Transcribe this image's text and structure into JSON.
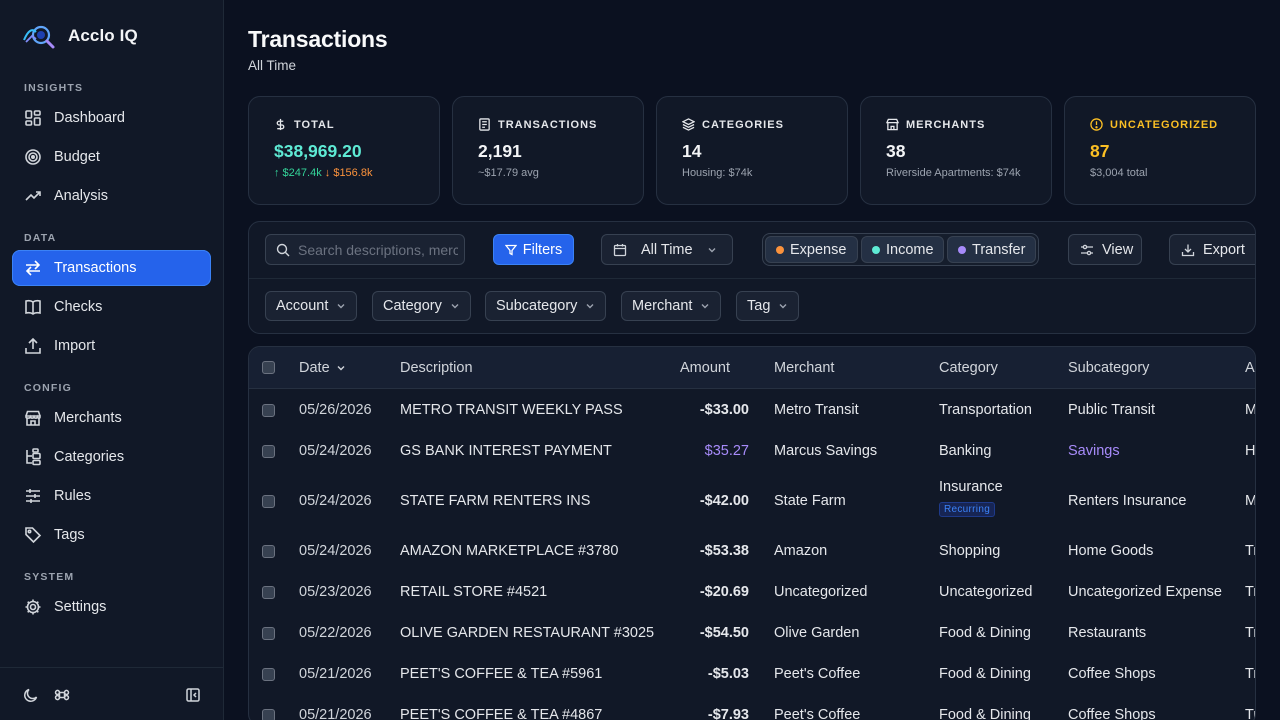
{
  "app": {
    "name": "Acclo IQ"
  },
  "sidebar": {
    "sections": {
      "insights": "INSIGHTS",
      "data": "DATA",
      "config": "CONFIG",
      "system": "SYSTEM"
    },
    "items": [
      {
        "label": "Dashboard",
        "icon": "dashboard-icon"
      },
      {
        "label": "Budget",
        "icon": "target-icon"
      },
      {
        "label": "Analysis",
        "icon": "trending-icon"
      },
      {
        "label": "Transactions",
        "icon": "transfer-arrows-icon",
        "active": true
      },
      {
        "label": "Checks",
        "icon": "book-icon"
      },
      {
        "label": "Import",
        "icon": "upload-icon"
      },
      {
        "label": "Merchants",
        "icon": "store-icon"
      },
      {
        "label": "Categories",
        "icon": "tree-icon"
      },
      {
        "label": "Rules",
        "icon": "sliders-icon"
      },
      {
        "label": "Tags",
        "icon": "tag-icon"
      },
      {
        "label": "Settings",
        "icon": "gear-icon"
      }
    ]
  },
  "header": {
    "title": "Transactions",
    "subtitle": "All Time"
  },
  "stats": [
    {
      "label": "TOTAL",
      "icon": "dollar-icon",
      "value": "$38,969.20",
      "sub_up": "↑ $247.4k",
      "sub_down": "↓ $156.8k"
    },
    {
      "label": "TRANSACTIONS",
      "icon": "receipt-icon",
      "value": "2,191",
      "sub": "~$17.79 avg"
    },
    {
      "label": "CATEGORIES",
      "icon": "layers-icon",
      "value": "14",
      "sub": "Housing: $74k"
    },
    {
      "label": "MERCHANTS",
      "icon": "store-icon",
      "value": "38",
      "sub": "Riverside Apartments: $74k"
    },
    {
      "label": "UNCATEGORIZED",
      "icon": "alert-circle-icon",
      "value": "87",
      "sub": "$3,004 total"
    }
  ],
  "toolbar": {
    "search_placeholder": "Search descriptions, merchants...",
    "filters_label": "Filters",
    "date_range": "All Time",
    "types": [
      "Expense",
      "Income",
      "Transfer"
    ],
    "type_colors": [
      "#fb923c",
      "#5eead4",
      "#a78bfa"
    ],
    "view_label": "View",
    "export_label": "Export",
    "dropdowns": [
      "Account",
      "Category",
      "Subcategory",
      "Merchant",
      "Tag"
    ]
  },
  "table": {
    "columns": [
      "Date",
      "Description",
      "Amount",
      "Merchant",
      "Category",
      "Subcategory",
      "Ac"
    ],
    "rows": [
      {
        "date": "05/26/2026",
        "description": "METRO TRANSIT WEEKLY PASS",
        "amount": "-$33.00",
        "merchant": "Metro Transit",
        "category": "Transportation",
        "subcategory": "Public Transit",
        "account": "M"
      },
      {
        "date": "05/24/2026",
        "description": "GS BANK INTEREST PAYMENT",
        "amount": "$35.27",
        "merchant": "Marcus Savings",
        "category": "Banking",
        "subcategory": "Savings",
        "account": "H"
      },
      {
        "date": "05/24/2026",
        "description": "STATE FARM RENTERS INS",
        "amount": "-$42.00",
        "merchant": "State Farm",
        "category": "Insurance",
        "badge": "Recurring",
        "subcategory": "Renters Insurance",
        "account": "M"
      },
      {
        "date": "05/24/2026",
        "description": "AMAZON MARKETPLACE #3780",
        "amount": "-$53.38",
        "merchant": "Amazon",
        "category": "Shopping",
        "subcategory": "Home Goods",
        "account": "Tr"
      },
      {
        "date": "05/23/2026",
        "description": "RETAIL STORE #4521",
        "amount": "-$20.69",
        "merchant": "Uncategorized",
        "category": "Uncategorized",
        "subcategory": "Uncategorized Expense",
        "account": "Tr"
      },
      {
        "date": "05/22/2026",
        "description": "OLIVE GARDEN RESTAURANT #3025",
        "amount": "-$54.50",
        "merchant": "Olive Garden",
        "category": "Food & Dining",
        "subcategory": "Restaurants",
        "account": "Tr"
      },
      {
        "date": "05/21/2026",
        "description": "PEET'S COFFEE & TEA #5961",
        "amount": "-$5.03",
        "merchant": "Peet's Coffee",
        "category": "Food & Dining",
        "subcategory": "Coffee Shops",
        "account": "Tr"
      },
      {
        "date": "05/21/2026",
        "description": "PEET'S COFFEE & TEA #4867",
        "amount": "-$7.93",
        "merchant": "Peet's Coffee",
        "category": "Food & Dining",
        "subcategory": "Coffee Shops",
        "account": "Tr"
      }
    ]
  }
}
